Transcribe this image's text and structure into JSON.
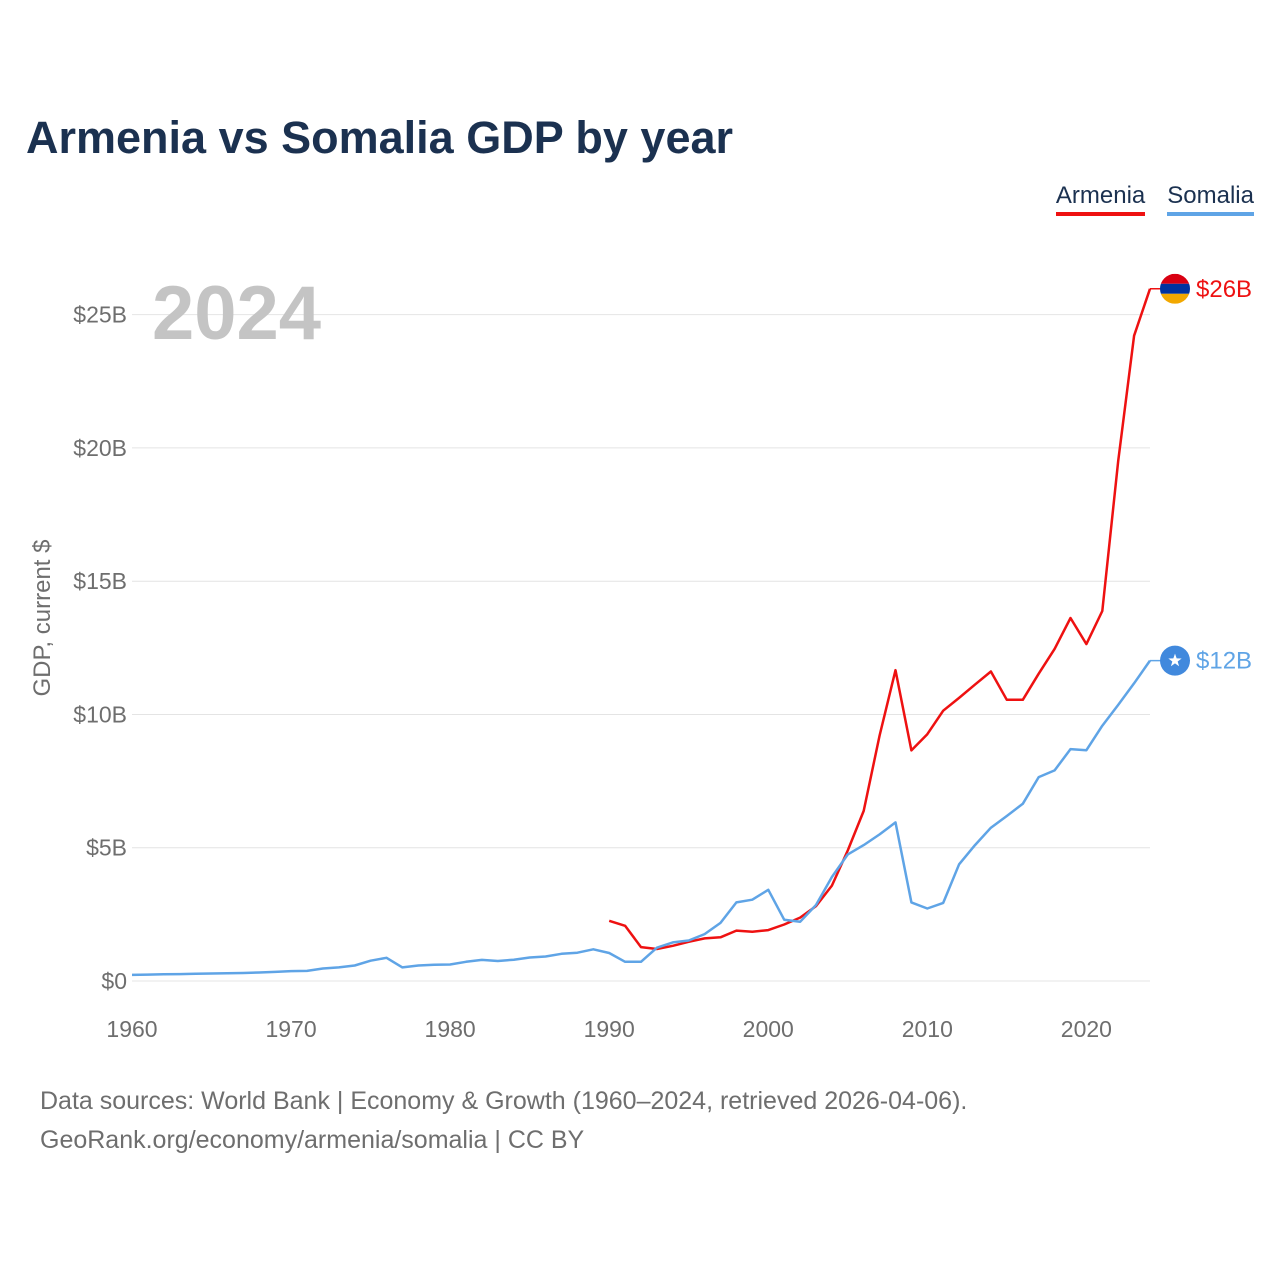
{
  "title": "Armenia vs Somalia GDP by year",
  "legend": [
    {
      "label": "Armenia",
      "color": "#ee1111"
    },
    {
      "label": "Somalia",
      "color": "#5fa4e6"
    }
  ],
  "year_label": "2024",
  "chart_data": {
    "type": "line",
    "title": "Armenia vs Somalia GDP by year",
    "ylabel": "GDP, current $",
    "xlabel": "",
    "xlim": [
      1960,
      2024
    ],
    "ylim": [
      0,
      26000000000
    ],
    "x_ticks": [
      1960,
      1970,
      1980,
      1990,
      2000,
      2010,
      2020
    ],
    "y_ticks": [
      {
        "value": 0,
        "label": "$0"
      },
      {
        "value": 5000000000,
        "label": "$5B"
      },
      {
        "value": 10000000000,
        "label": "$10B"
      },
      {
        "value": 15000000000,
        "label": "$15B"
      },
      {
        "value": 20000000000,
        "label": "$20B"
      },
      {
        "value": 25000000000,
        "label": "$25B"
      }
    ],
    "grid": true,
    "series": [
      {
        "name": "Armenia",
        "color": "#ee1111",
        "end_label": "$26B",
        "flag_icon": "armenia-flag-icon",
        "x": [
          1990,
          1991,
          1992,
          1993,
          1994,
          1995,
          1996,
          1997,
          1998,
          1999,
          2000,
          2001,
          2002,
          2003,
          2004,
          2005,
          2006,
          2007,
          2008,
          2009,
          2010,
          2011,
          2012,
          2013,
          2014,
          2015,
          2016,
          2017,
          2018,
          2019,
          2020,
          2021,
          2022,
          2023,
          2024
        ],
        "values": [
          2260000000,
          2070000000,
          1270000000,
          1200000000,
          1320000000,
          1470000000,
          1600000000,
          1640000000,
          1890000000,
          1850000000,
          1910000000,
          2120000000,
          2380000000,
          2810000000,
          3580000000,
          4900000000,
          6380000000,
          9210000000,
          11660000000,
          8650000000,
          9260000000,
          10140000000,
          10620000000,
          11120000000,
          11610000000,
          10550000000,
          10550000000,
          11530000000,
          12460000000,
          13620000000,
          12640000000,
          13880000000,
          19510000000,
          24210000000,
          25970000000
        ]
      },
      {
        "name": "Somalia",
        "color": "#5fa4e6",
        "end_label": "$12B",
        "flag_icon": "somalia-flag-icon",
        "x": [
          1960,
          1961,
          1962,
          1963,
          1964,
          1965,
          1966,
          1967,
          1968,
          1969,
          1970,
          1971,
          1972,
          1973,
          1974,
          1975,
          1976,
          1977,
          1978,
          1979,
          1980,
          1981,
          1982,
          1983,
          1984,
          1985,
          1986,
          1987,
          1988,
          1989,
          1990,
          1991,
          1992,
          1993,
          1994,
          1995,
          1996,
          1997,
          1998,
          1999,
          2000,
          2001,
          2002,
          2003,
          2004,
          2005,
          2006,
          2007,
          2008,
          2009,
          2010,
          2011,
          2012,
          2013,
          2014,
          2015,
          2016,
          2017,
          2018,
          2019,
          2020,
          2021,
          2022,
          2023,
          2024
        ],
        "values": [
          230000000,
          240000000,
          250000000,
          260000000,
          270000000,
          280000000,
          290000000,
          300000000,
          320000000,
          340000000,
          370000000,
          380000000,
          470000000,
          510000000,
          580000000,
          760000000,
          870000000,
          510000000,
          580000000,
          610000000,
          620000000,
          720000000,
          790000000,
          750000000,
          800000000,
          880000000,
          920000000,
          1020000000,
          1060000000,
          1190000000,
          1050000000,
          720000000,
          720000000,
          1250000000,
          1450000000,
          1520000000,
          1760000000,
          2180000000,
          2950000000,
          3050000000,
          3420000000,
          2300000000,
          2220000000,
          2850000000,
          3900000000,
          4750000000,
          5100000000,
          5500000000,
          5950000000,
          2950000000,
          2720000000,
          2930000000,
          4380000000,
          5100000000,
          5750000000,
          6190000000,
          6650000000,
          7650000000,
          7900000000,
          8700000000,
          8660000000,
          9580000000,
          10360000000,
          11170000000,
          12020000000
        ]
      }
    ]
  },
  "source": {
    "line1": "Data sources: World Bank | Economy & Growth (1960–2024, retrieved 2026-04-06).",
    "line2": "GeoRank.org/economy/armenia/somalia | CC BY"
  }
}
